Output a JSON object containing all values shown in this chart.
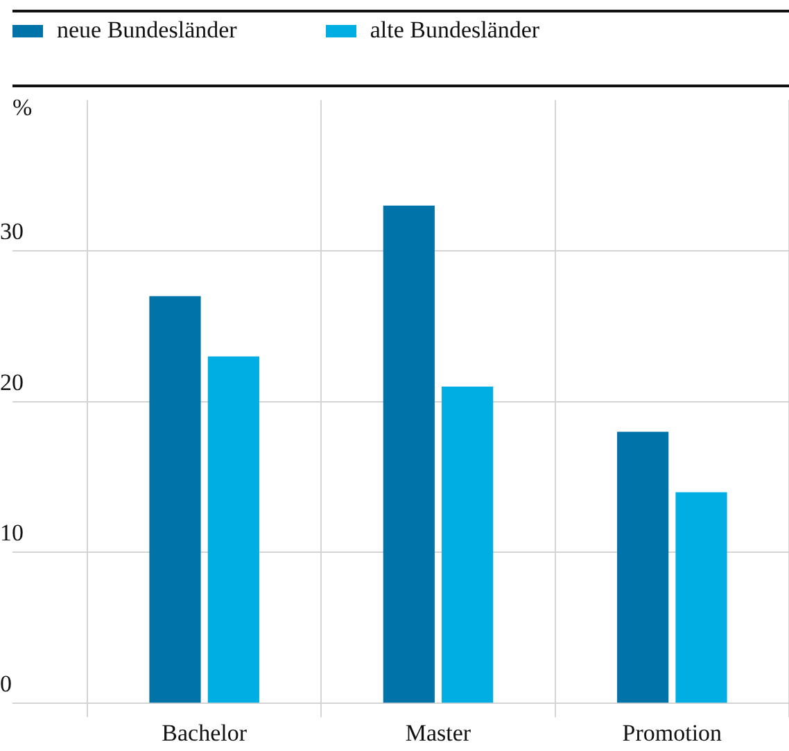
{
  "chart_data": {
    "type": "bar",
    "ylabel": "%",
    "categories": [
      "Bachelor",
      "Master",
      "Promotion"
    ],
    "series": [
      {
        "name": "neue Bundesländer",
        "color": "#0073a8",
        "values": [
          27,
          33,
          18
        ]
      },
      {
        "name": "alte Bundesländer",
        "color": "#00aee4",
        "values": [
          23,
          21,
          14
        ]
      }
    ],
    "ylim": [
      0,
      40
    ],
    "yticks": [
      0,
      10,
      20,
      30
    ],
    "grid": true,
    "legend": "top left"
  }
}
